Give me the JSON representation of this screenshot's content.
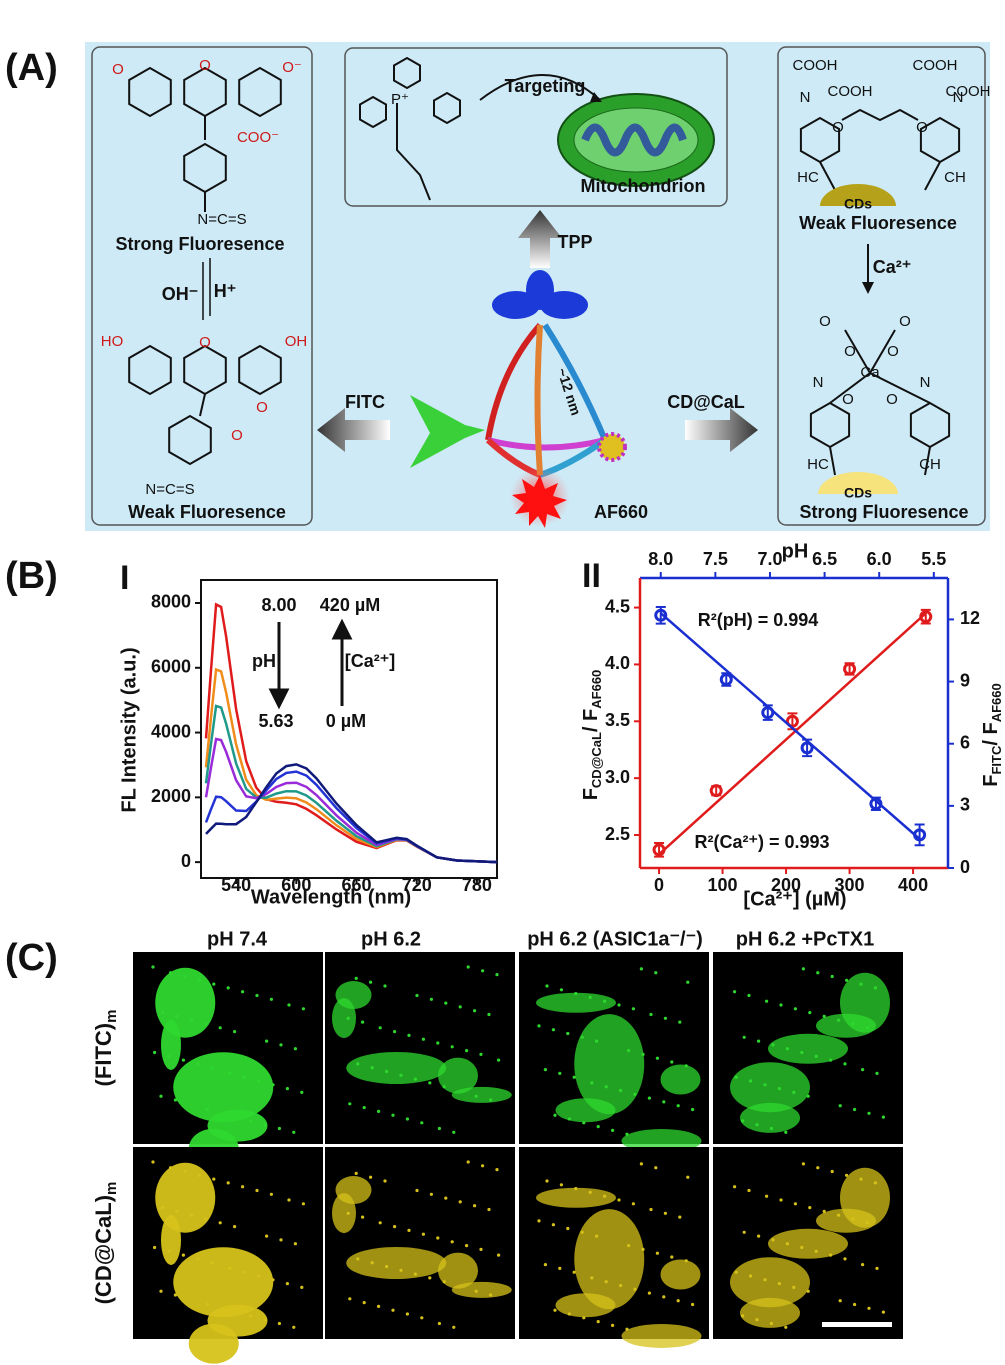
{
  "panel_a": {
    "label": "(A)",
    "fitc": {
      "structure_top": [
        "O",
        "O",
        "O⁻",
        "COO⁻",
        "N=C=S"
      ],
      "state_top": "Strong Fluoresence",
      "base": "OH⁻",
      "acid": "H⁺",
      "structure_bottom": [
        "HO",
        "O",
        "OH",
        "O",
        "O",
        "N=C=S"
      ],
      "state_bottom": "Weak Fluoresence"
    },
    "tpp": {
      "structure": [
        "P⁺"
      ],
      "action": "Targeting",
      "target": "Mitochondrion",
      "arrow": "TPP"
    },
    "probe": {
      "size": "~12 nm",
      "left_arrow": "FITC",
      "right_arrow": "CD@CaL",
      "reference": "AF660"
    },
    "cdcal": {
      "structure_top": [
        "COOH",
        "COOH",
        "COOH",
        "COOH",
        "N",
        "N",
        "O",
        "O",
        "HC",
        "CH"
      ],
      "dot_top": "CDs",
      "state_top": "Weak Fluoresence",
      "ion": "Ca²⁺",
      "structure_bottom": [
        "O",
        "O",
        "O",
        "O",
        "Ca",
        "N",
        "N",
        "O",
        "O",
        "HC",
        "CH"
      ],
      "dot_bottom": "CDs",
      "state_bottom": "Strong Fluoresence"
    }
  },
  "panel_b": {
    "label": "(B)"
  },
  "chart_data": [
    {
      "type": "line",
      "title": "I",
      "xlabel": "Wavelength (nm)",
      "ylabel": "FL Intensity (a.u.)",
      "x": [
        510,
        515,
        520,
        525,
        530,
        540,
        550,
        560,
        570,
        580,
        590,
        600,
        610,
        620,
        640,
        660,
        680,
        700,
        710,
        720,
        740,
        760,
        800
      ],
      "xlim": [
        505,
        800
      ],
      "xticks": [
        540,
        600,
        660,
        720,
        780
      ],
      "ylim": [
        -490,
        8710
      ],
      "yticks": [
        0,
        2000,
        4000,
        6000,
        8000
      ],
      "annotations": [
        "8.00",
        "420 µM",
        "pH",
        "[Ca²⁺]",
        "5.63",
        "0 µM"
      ],
      "series": [
        {
          "color": "#e01b1b",
          "values": [
            3820,
            5926,
            7954,
            7876,
            6971,
            4724,
            3116,
            2303,
            1943,
            1863,
            1831,
            1784,
            1644,
            1450,
            1008,
            628,
            436,
            678,
            667,
            481,
            150,
            50,
            0
          ]
        },
        {
          "color": "#f08c1c",
          "values": [
            2925,
            4464,
            5946,
            5889,
            5241,
            3639,
            2544,
            2070,
            1920,
            1962,
            1992,
            1971,
            1842,
            1634,
            1137,
            713,
            466,
            690,
            674,
            486,
            150,
            50,
            0
          ]
        },
        {
          "color": "#1f9a8a",
          "values": [
            2435,
            3650,
            4820,
            4775,
            4276,
            3049,
            2260,
            1999,
            1988,
            2115,
            2189,
            2185,
            2058,
            1831,
            1275,
            802,
            496,
            703,
            682,
            491,
            150,
            50,
            0
          ]
        },
        {
          "color": "#9a2bd8",
          "values": [
            2000,
            2918,
            3802,
            3768,
            3407,
            2528,
            2028,
            1975,
            2103,
            2319,
            2439,
            2452,
            2324,
            2072,
            1444,
            910,
            532,
            718,
            691,
            497,
            150,
            50,
            0
          ]
        },
        {
          "color": "#2433d6",
          "values": [
            1225,
            1630,
            2020,
            2005,
            1880,
            1595,
            1580,
            1865,
            2213,
            2565,
            2755,
            2795,
            2670,
            2388,
            1665,
            1053,
            580,
            738,
            703,
            505,
            150,
            50,
            0
          ]
        },
        {
          "color": "#101a7a",
          "values": [
            870,
            1032,
            1188,
            1182,
            1170,
            1170,
            1392,
            1848,
            2310,
            2736,
            2964,
            3018,
            2892,
            2589,
            1806,
            1143,
            610,
            750,
            710,
            510,
            150,
            50,
            0
          ]
        }
      ]
    },
    {
      "type": "scatter",
      "title": "II",
      "xlabel": "[Ca²⁺] (µM)",
      "x2label": "pH",
      "ylabel": [
        "F",
        "CD@CaL",
        "/ F",
        "AF660"
      ],
      "y2label": [
        "F",
        "FITC",
        "/ F",
        "AF660"
      ],
      "xlim": [
        -30,
        455
      ],
      "xticks": [
        0,
        100,
        200,
        300,
        400
      ],
      "x2lim": [
        8.19,
        5.37
      ],
      "x2ticks": [
        {
          "value": 8,
          "label": "8.0"
        },
        7.5,
        {
          "value": 7,
          "label": "7.0"
        },
        6.5,
        {
          "value": 6,
          "label": "6.0"
        },
        5.5
      ],
      "ylim": [
        2.21,
        4.76
      ],
      "yticks": [
        2.5,
        {
          "value": 3,
          "label": "3.0"
        },
        3.5,
        {
          "value": 4,
          "label": "4.0"
        },
        4.5
      ],
      "y2lim": [
        0,
        14
      ],
      "y2ticks": [
        0,
        3,
        6,
        9,
        12
      ],
      "annotations": [
        "R²(pH) = 0.994",
        "R²(Ca²⁺) = 0.993"
      ],
      "series": [
        {
          "color": "#e01b1b",
          "x": [
            0,
            90,
            210,
            300,
            420
          ],
          "values": [
            2.37,
            2.89,
            3.5,
            3.96,
            4.42
          ],
          "errors": [
            0.06,
            0.04,
            0.07,
            0.05,
            0.06
          ],
          "fit": {
            "x": [
              0,
              420
            ],
            "values": [
              2.33,
              4.45
            ]
          }
        },
        {
          "color": "#1a2fd0",
          "axis": "y2",
          "xaxis": "x2",
          "x": [
            8.0,
            7.4,
            7.02,
            6.66,
            6.03,
            5.63
          ],
          "values": [
            12.2,
            9.1,
            7.5,
            5.8,
            3.1,
            1.6
          ],
          "errors": [
            0.4,
            0.3,
            0.35,
            0.4,
            0.3,
            0.5
          ],
          "fit": {
            "x": [
              8.0,
              5.63
            ],
            "values": [
              12.3,
              1.4
            ]
          }
        }
      ]
    }
  ],
  "panel_c": {
    "label": "(C)",
    "columns": [
      "pH 7.4",
      "pH 6.2",
      "pH 6.2 (ASIC1a⁻/⁻)",
      "pH 6.2 +PcTX1"
    ],
    "rows": [
      {
        "text": "(FITC)",
        "sub": "m"
      },
      {
        "text": "(CD@CaL)",
        "sub": "m"
      }
    ]
  }
}
